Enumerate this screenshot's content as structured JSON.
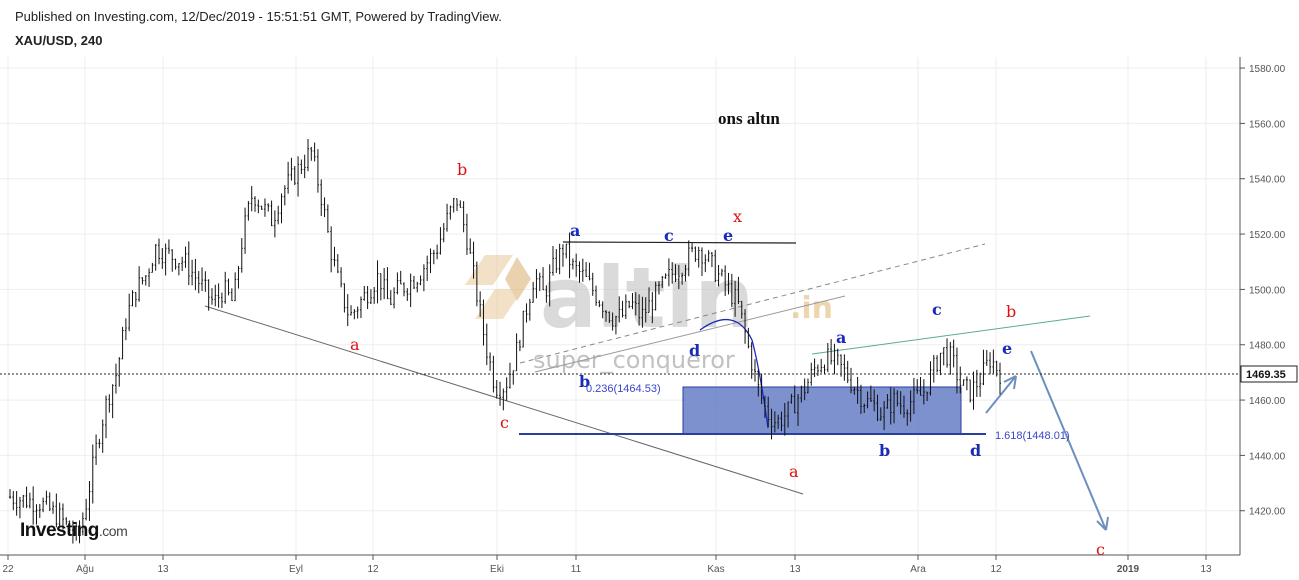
{
  "header": {
    "published": "Published on Investing.com, 12/Dec/2019 - 15:51:51 GMT, Powered by TradingView.",
    "symbol": "XAU/USD, 240"
  },
  "logo": {
    "main": "Investing",
    "suffix": ".com"
  },
  "colors": {
    "candle": "#111111",
    "wave_blue": "#1a2bb8",
    "wave_red": "#dd1111",
    "rect_fill": "#5b76c2",
    "trend_green": "#5cab8e",
    "projection": "#6d8fc0"
  },
  "chart_data": {
    "type": "candlestick",
    "title": "ons altın",
    "watermark": {
      "brand": "altin",
      "domain": ".in",
      "author": "super_conqueror"
    },
    "y_axis": {
      "ticks": [
        1420,
        1440,
        1460,
        1480,
        1500,
        1520,
        1540,
        1560,
        1580
      ],
      "range": [
        1404,
        1584
      ],
      "side": "right"
    },
    "x_axis": {
      "ticks": [
        "22",
        "Ağu",
        "13",
        "Eyl",
        "12",
        "Eki",
        "11",
        "Kas",
        "13",
        "Ara",
        "12",
        "2019",
        "13"
      ]
    },
    "last_price": "1469.35",
    "path": [
      [
        0,
        1425
      ],
      [
        3,
        1423
      ],
      [
        5,
        1418
      ],
      [
        7,
        1410
      ],
      [
        8,
        1425
      ],
      [
        9,
        1445
      ],
      [
        10,
        1460
      ],
      [
        11,
        1470
      ],
      [
        12,
        1490
      ],
      [
        13,
        1500
      ],
      [
        14,
        1505
      ],
      [
        15,
        1515
      ],
      [
        16,
        1513
      ],
      [
        18,
        1510
      ],
      [
        19,
        1505
      ],
      [
        20,
        1500
      ],
      [
        21,
        1495
      ],
      [
        22,
        1500
      ],
      [
        23,
        1495
      ],
      [
        24,
        1520
      ],
      [
        25,
        1535
      ],
      [
        26,
        1530
      ],
      [
        27,
        1525
      ],
      [
        28,
        1535
      ],
      [
        29,
        1540
      ],
      [
        30,
        1545
      ],
      [
        31,
        1550
      ],
      [
        32,
        1535
      ],
      [
        33,
        1515
      ],
      [
        34,
        1500
      ],
      [
        35,
        1490
      ],
      [
        36,
        1495
      ],
      [
        37,
        1500
      ],
      [
        38,
        1505
      ],
      [
        39,
        1495
      ],
      [
        40,
        1500
      ],
      [
        41,
        1502
      ],
      [
        42,
        1505
      ],
      [
        43,
        1510
      ],
      [
        44,
        1515
      ],
      [
        45,
        1525
      ],
      [
        46,
        1533
      ],
      [
        47,
        1520
      ],
      [
        48,
        1500
      ],
      [
        49,
        1480
      ],
      [
        50,
        1465
      ],
      [
        51,
        1465
      ],
      [
        52,
        1475
      ],
      [
        53,
        1490
      ],
      [
        54,
        1505
      ],
      [
        55,
        1498
      ],
      [
        56,
        1508
      ],
      [
        57,
        1515
      ],
      [
        58,
        1508
      ],
      [
        59,
        1505
      ],
      [
        60,
        1500
      ],
      [
        61,
        1495
      ],
      [
        62,
        1490
      ],
      [
        63,
        1490
      ],
      [
        64,
        1495
      ],
      [
        65,
        1490
      ],
      [
        66,
        1495
      ],
      [
        67,
        1500
      ],
      [
        68,
        1505
      ],
      [
        69,
        1508
      ],
      [
        70,
        1512
      ],
      [
        71,
        1515
      ],
      [
        72,
        1510
      ],
      [
        73,
        1505
      ],
      [
        74,
        1500
      ],
      [
        75,
        1495
      ],
      [
        76,
        1480
      ],
      [
        77,
        1465
      ],
      [
        78,
        1455
      ],
      [
        79,
        1452
      ],
      [
        80,
        1455
      ],
      [
        81,
        1460
      ],
      [
        82,
        1465
      ],
      [
        83,
        1472
      ],
      [
        84,
        1475
      ],
      [
        85,
        1474
      ],
      [
        86,
        1470
      ],
      [
        87,
        1465
      ],
      [
        88,
        1460
      ],
      [
        89,
        1458
      ],
      [
        90,
        1455
      ],
      [
        91,
        1460
      ],
      [
        92,
        1458
      ],
      [
        93,
        1460
      ],
      [
        94,
        1462
      ],
      [
        95,
        1470
      ],
      [
        96,
        1478
      ],
      [
        97,
        1475
      ],
      [
        98,
        1465
      ],
      [
        99,
        1463
      ],
      [
        100,
        1468
      ],
      [
        101,
        1475
      ],
      [
        102,
        1470
      ]
    ],
    "annotations": {
      "blue_waves": [
        "a",
        "c",
        "e",
        "d",
        "b",
        "a",
        "b",
        "c",
        "d",
        "e"
      ],
      "red_waves": [
        "b",
        "a",
        "c",
        "x",
        "a",
        "b",
        "c"
      ],
      "fib_upper": "0.236(1464.53)",
      "fib_lower": "1.618(1448.01)"
    }
  }
}
